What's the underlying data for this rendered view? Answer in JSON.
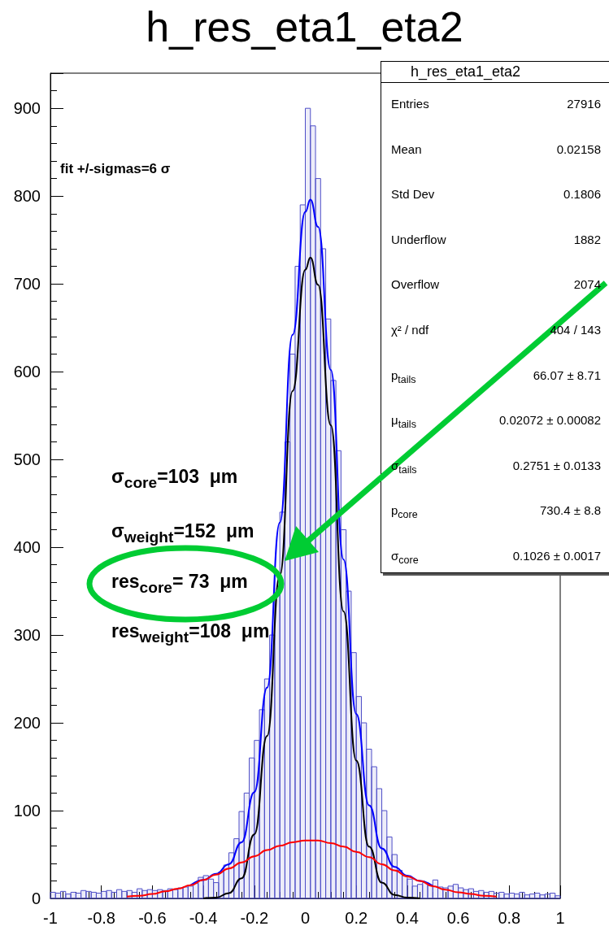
{
  "chart_data": {
    "type": "histogram",
    "title": "h_res_eta1_eta2",
    "xlim": [
      -1,
      1
    ],
    "xticks": [
      -1,
      -0.8,
      -0.6,
      -0.4,
      -0.2,
      0,
      0.2,
      0.4,
      0.6,
      0.8,
      1
    ],
    "ylim": [
      0,
      940
    ],
    "yticks": [
      0,
      100,
      200,
      300,
      400,
      500,
      600,
      700,
      800,
      900
    ],
    "grid": false,
    "bins": [
      -1,
      -0.98,
      -0.96,
      -0.94,
      -0.92,
      -0.9,
      -0.88,
      -0.86,
      -0.84,
      -0.82,
      -0.8,
      -0.78,
      -0.76,
      -0.74,
      -0.72,
      -0.7,
      -0.68,
      -0.66,
      -0.64,
      -0.62,
      -0.6,
      -0.58,
      -0.56,
      -0.54,
      -0.52,
      -0.5,
      -0.48,
      -0.46,
      -0.44,
      -0.42,
      -0.4,
      -0.38,
      -0.36,
      -0.34,
      -0.32,
      -0.3,
      -0.28,
      -0.26,
      -0.24,
      -0.22,
      -0.2,
      -0.18,
      -0.16,
      -0.14,
      -0.12,
      -0.1,
      -0.08,
      -0.06,
      -0.04,
      -0.02,
      0,
      0.02,
      0.04,
      0.06,
      0.08,
      0.1,
      0.12,
      0.14,
      0.16,
      0.18,
      0.2,
      0.22,
      0.24,
      0.26,
      0.28,
      0.3,
      0.32,
      0.34,
      0.36,
      0.38,
      0.4,
      0.42,
      0.44,
      0.46,
      0.48,
      0.5,
      0.52,
      0.54,
      0.56,
      0.58,
      0.6,
      0.62,
      0.64,
      0.66,
      0.68,
      0.7,
      0.72,
      0.74,
      0.76,
      0.78,
      0.8,
      0.82,
      0.84,
      0.86,
      0.88,
      0.9,
      0.92,
      0.94,
      0.96,
      0.98,
      1
    ],
    "series": [
      {
        "color": "#4f4fc8",
        "values": [
          7,
          6,
          8,
          5,
          7,
          6,
          9,
          8,
          7,
          6,
          8,
          9,
          7,
          10,
          8,
          9,
          7,
          11,
          9,
          10,
          9,
          10,
          9,
          11,
          10,
          12,
          13,
          14,
          17,
          24,
          26,
          22,
          18,
          30,
          38,
          52,
          68,
          99,
          120,
          160,
          180,
          215,
          250,
          300,
          370,
          440,
          520,
          620,
          720,
          790,
          900,
          880,
          820,
          740,
          660,
          590,
          510,
          420,
          350,
          280,
          230,
          200,
          170,
          150,
          125,
          100,
          70,
          50,
          32,
          26,
          22,
          14,
          16,
          18,
          15,
          21,
          13,
          12,
          14,
          16,
          12,
          10,
          11,
          8,
          9,
          7,
          8,
          6,
          7,
          5,
          6,
          5,
          7,
          4,
          5,
          6,
          4,
          5,
          6,
          3
        ]
      },
      {
        "type": "line",
        "color": "#ff0000",
        "x": [
          -0.7,
          -0.65,
          -0.6,
          -0.55,
          -0.5,
          -0.45,
          -0.4,
          -0.35,
          -0.3,
          -0.25,
          -0.2,
          -0.15,
          -0.1,
          -0.05,
          0,
          0.02,
          0.05,
          0.1,
          0.15,
          0.2,
          0.25,
          0.3,
          0.35,
          0.4,
          0.45,
          0.5,
          0.55,
          0.6,
          0.65,
          0.7,
          0.75
        ],
        "values": [
          2,
          3,
          5,
          8,
          11,
          15,
          21,
          27,
          34,
          41,
          48,
          55,
          60,
          64,
          66,
          66,
          66,
          63,
          59,
          53,
          47,
          39,
          32,
          25,
          20,
          14,
          10,
          7,
          5,
          3,
          2
        ]
      },
      {
        "type": "line",
        "color": "#000000",
        "x": [
          -0.4,
          -0.35,
          -0.3,
          -0.25,
          -0.2,
          -0.15,
          -0.1,
          -0.05,
          0,
          0.02,
          0.05,
          0.1,
          0.15,
          0.2,
          0.25,
          0.3,
          0.35,
          0.4,
          0.45
        ],
        "values": [
          0,
          1,
          6,
          23,
          73,
          185,
          368,
          578,
          716,
          730,
          699,
          539,
          327,
          157,
          59,
          18,
          4,
          1,
          0
        ]
      },
      {
        "type": "line",
        "color": "#0000ff",
        "x": [
          -0.45,
          -0.4,
          -0.35,
          -0.3,
          -0.25,
          -0.2,
          -0.15,
          -0.1,
          -0.05,
          0,
          0.02,
          0.05,
          0.1,
          0.15,
          0.2,
          0.25,
          0.3,
          0.35,
          0.4,
          0.45,
          0.5
        ],
        "values": [
          15,
          21,
          28,
          39,
          64,
          121,
          240,
          428,
          642,
          782,
          796,
          765,
          602,
          386,
          210,
          106,
          57,
          36,
          26,
          20,
          14
        ]
      }
    ],
    "annotations": [
      "fit +/-sigmas=6 σ",
      "σ$_{core}$=103  μm",
      "σ$_{weight}$=152  μm",
      "res$_{core}$= 73  μm",
      "res$_{weight}$=108  μm",
      "h_res_eta1_eta2",
      "Entries",
      "27916",
      "Mean",
      "0.02158",
      "Std Dev",
      "0.1806",
      "Underflow",
      "1882",
      "Overflow",
      "2074",
      "χ² / ndf",
      "404 / 143",
      "p$_{tails}$",
      "66.07 ± 8.71",
      "μ$_{tails}$",
      "0.02072 ± 0.00082",
      "σ$_{tails}$",
      "0.2751 ± 0.0133",
      "p$_{core}$",
      "730.4 ± 8.8",
      "σ$_{core}$",
      "0.1026 ± 0.0017"
    ]
  }
}
